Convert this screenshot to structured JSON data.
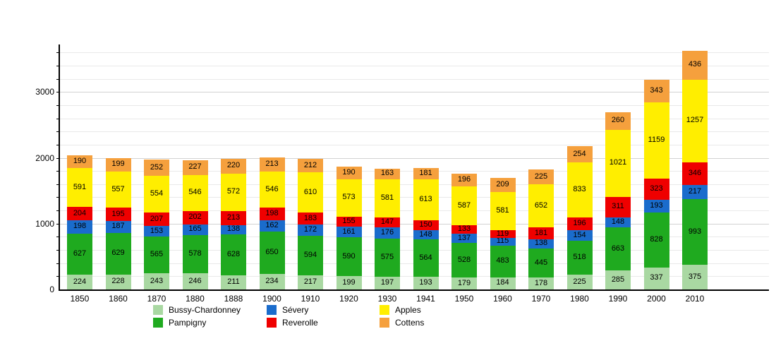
{
  "chart_data": {
    "type": "bar",
    "stacked": true,
    "title": "",
    "xlabel": "",
    "ylabel": "",
    "categories": [
      "1850",
      "1860",
      "1870",
      "1880",
      "1888",
      "1900",
      "1910",
      "1920",
      "1930",
      "1941",
      "1950",
      "1960",
      "1970",
      "1980",
      "1990",
      "2000",
      "2010"
    ],
    "series": [
      {
        "name": "Bussy-Chardonney",
        "color": "#a9d8a2",
        "values": [
          224,
          228,
          243,
          246,
          211,
          234,
          217,
          199,
          197,
          193,
          179,
          184,
          178,
          225,
          285,
          337,
          375
        ]
      },
      {
        "name": "Pampigny",
        "color": "#1faa1f",
        "values": [
          627,
          629,
          565,
          578,
          628,
          650,
          594,
          590,
          575,
          564,
          528,
          483,
          445,
          518,
          663,
          828,
          993
        ]
      },
      {
        "name": "Sévery",
        "color": "#1a6ccc",
        "values": [
          198,
          187,
          153,
          165,
          138,
          162,
          172,
          161,
          176,
          148,
          137,
          115,
          138,
          154,
          148,
          193,
          217
        ]
      },
      {
        "name": "Reverolle",
        "color": "#ef0000",
        "values": [
          204,
          195,
          207,
          202,
          213,
          198,
          183,
          155,
          147,
          150,
          133,
          119,
          181,
          196,
          311,
          323,
          346
        ]
      },
      {
        "name": "Apples",
        "color": "#ffee00",
        "values": [
          591,
          557,
          554,
          546,
          572,
          546,
          610,
          573,
          581,
          613,
          587,
          581,
          652,
          833,
          1021,
          1159,
          1257
        ]
      },
      {
        "name": "Cottens",
        "color": "#f5a03d",
        "values": [
          190,
          199,
          252,
          227,
          220,
          213,
          212,
          190,
          163,
          181,
          196,
          209,
          225,
          254,
          260,
          343,
          436
        ]
      }
    ],
    "ylim": [
      0,
      3700
    ],
    "yticks": [
      0,
      1000,
      2000,
      3000
    ],
    "minor_tick_step": 200,
    "grid": true,
    "legend_position": "bottom"
  }
}
